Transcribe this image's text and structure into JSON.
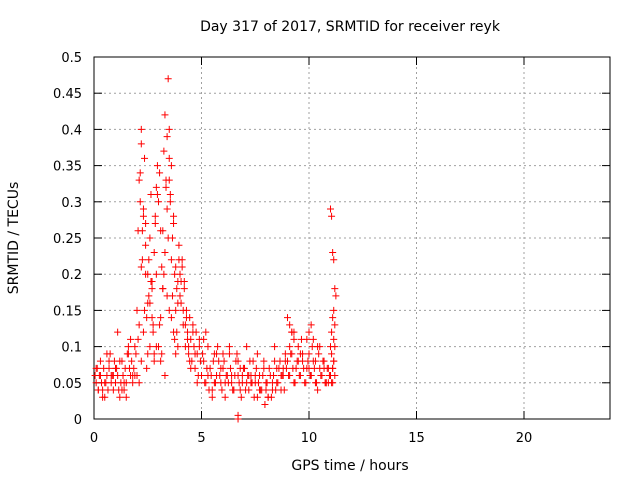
{
  "chart_data": {
    "type": "scatter",
    "title": "Day 317 of 2017, SRMTID for receiver reyk",
    "xlabel": "GPS time / hours",
    "ylabel": "SRMTID / TECUs",
    "xlim": [
      0,
      24
    ],
    "ylim": [
      0,
      0.5
    ],
    "xticks": [
      0,
      5,
      10,
      15,
      20
    ],
    "yticks": [
      0,
      0.05,
      0.1,
      0.15,
      0.2,
      0.25,
      0.3,
      0.35,
      0.4,
      0.45,
      0.5
    ],
    "grid": true,
    "marker": "plus",
    "color": "#ff0000",
    "series": [
      {
        "x": [
          0.05,
          0.1,
          0.15,
          0.2,
          0.25,
          0.3,
          0.35,
          0.4,
          0.45,
          0.5,
          0.55,
          0.6,
          0.65,
          0.7,
          0.75,
          0.8,
          0.85,
          0.9,
          0.95,
          1.0,
          1.05,
          1.1,
          1.15,
          1.2,
          1.25,
          1.3,
          1.35,
          1.4,
          1.45,
          1.5,
          1.55,
          1.6,
          1.65,
          1.7,
          1.75,
          1.8,
          1.85,
          1.9,
          1.95,
          0.1,
          0.3,
          0.5,
          0.7,
          0.9,
          1.1,
          1.3,
          1.5,
          1.7,
          1.9,
          0.2,
          0.6,
          1.0,
          1.4,
          1.8,
          0.4,
          0.8,
          1.2,
          1.6,
          2.0,
          2.05,
          2.1,
          2.15,
          2.2,
          2.25,
          2.3,
          2.35,
          2.4,
          2.45,
          2.5,
          2.55,
          2.6,
          2.65,
          2.7,
          2.75,
          2.8,
          2.85,
          2.9,
          2.95,
          2.0,
          2.1,
          2.2,
          2.3,
          2.4,
          2.5,
          2.6,
          2.7,
          2.8,
          2.9,
          2.05,
          2.15,
          2.25,
          2.35,
          2.45,
          2.55,
          2.65,
          2.75,
          2.85,
          2.95,
          2.1,
          2.2,
          2.3,
          2.5,
          2.7,
          2.9,
          2.2,
          2.4,
          2.6,
          2.8,
          3.0,
          3.05,
          3.1,
          3.15,
          3.2,
          3.25,
          3.3,
          3.35,
          3.4,
          3.45,
          3.5,
          3.55,
          3.6,
          3.65,
          3.7,
          3.75,
          3.8,
          3.85,
          3.9,
          3.95,
          3.0,
          3.1,
          3.2,
          3.3,
          3.4,
          3.5,
          3.6,
          3.7,
          3.8,
          3.9,
          3.05,
          3.15,
          3.25,
          3.35,
          3.45,
          3.55,
          3.65,
          3.75,
          3.85,
          3.95,
          3.1,
          3.3,
          3.5,
          3.7,
          3.9,
          3.2,
          3.4,
          3.6,
          3.8,
          3.5,
          4.0,
          4.05,
          4.1,
          4.15,
          4.2,
          4.25,
          4.3,
          4.35,
          4.4,
          4.45,
          4.5,
          4.55,
          4.6,
          4.65,
          4.7,
          4.75,
          4.8,
          4.85,
          4.9,
          4.95,
          4.0,
          4.1,
          4.2,
          4.3,
          4.4,
          4.5,
          4.6,
          4.7,
          4.8,
          4.9,
          4.05,
          4.15,
          4.25,
          4.35,
          4.45,
          5.0,
          5.1,
          5.2,
          5.3,
          5.4,
          5.5,
          5.6,
          5.7,
          5.8,
          5.9,
          6.0,
          6.1,
          6.2,
          6.3,
          6.4,
          6.5,
          6.6,
          6.7,
          6.8,
          6.9,
          5.05,
          5.15,
          5.25,
          5.35,
          5.45,
          5.55,
          5.65,
          5.75,
          5.85,
          5.95,
          6.05,
          6.15,
          6.25,
          6.35,
          6.45,
          6.55,
          6.65,
          6.75,
          6.85,
          6.95,
          5.1,
          5.3,
          5.5,
          5.7,
          5.9,
          6.1,
          6.3,
          6.5,
          6.7,
          6.9,
          5.2,
          5.6,
          6.0,
          6.4,
          6.8,
          6.7,
          6.7,
          7.0,
          7.1,
          7.2,
          7.3,
          7.4,
          7.5,
          7.6,
          7.7,
          7.8,
          7.9,
          8.0,
          8.1,
          8.2,
          8.3,
          8.4,
          8.5,
          8.6,
          8.7,
          8.8,
          8.9,
          7.05,
          7.15,
          7.25,
          7.35,
          7.45,
          7.55,
          7.65,
          7.75,
          7.85,
          7.95,
          8.05,
          8.15,
          8.25,
          8.35,
          8.45,
          8.55,
          8.65,
          8.75,
          8.85,
          8.95,
          7.1,
          7.3,
          7.5,
          7.7,
          7.9,
          8.1,
          8.3,
          8.5,
          8.7,
          8.9,
          7.2,
          7.6,
          8.0,
          8.4,
          8.8,
          9.0,
          9.1,
          9.2,
          9.3,
          9.4,
          9.5,
          9.6,
          9.7,
          9.8,
          9.9,
          10.0,
          10.1,
          10.2,
          10.3,
          10.4,
          10.5,
          10.6,
          10.7,
          10.8,
          10.9,
          9.05,
          9.15,
          9.25,
          9.35,
          9.45,
          9.55,
          9.65,
          9.75,
          9.85,
          9.95,
          10.05,
          10.15,
          10.25,
          10.35,
          10.45,
          10.55,
          10.65,
          10.75,
          10.85,
          10.95,
          9.1,
          9.3,
          9.5,
          9.7,
          9.9,
          10.1,
          10.3,
          10.5,
          10.7,
          10.9,
          9.2,
          9.6,
          10.0,
          10.4,
          10.8,
          9.0,
          9.1,
          9.2,
          9.3,
          10.0,
          10.1,
          10.2,
          11.0,
          11.05,
          11.1,
          11.15,
          11.2,
          11.25,
          11.0,
          11.05,
          11.1,
          11.15,
          11.2,
          11.0,
          11.05,
          11.1,
          11.15,
          11.2,
          11.05,
          11.1,
          11.15,
          11.2,
          11.1,
          11.15
        ],
        "y": [
          0.06,
          0.05,
          0.07,
          0.04,
          0.06,
          0.08,
          0.05,
          0.04,
          0.07,
          0.03,
          0.05,
          0.06,
          0.04,
          0.07,
          0.09,
          0.05,
          0.06,
          0.04,
          0.08,
          0.05,
          0.07,
          0.06,
          0.04,
          0.03,
          0.05,
          0.08,
          0.06,
          0.04,
          0.07,
          0.05,
          0.09,
          0.1,
          0.07,
          0.06,
          0.08,
          0.05,
          0.07,
          0.06,
          0.09,
          0.07,
          0.06,
          0.05,
          0.08,
          0.06,
          0.12,
          0.04,
          0.03,
          0.11,
          0.1,
          0.04,
          0.09,
          0.07,
          0.05,
          0.06,
          0.03,
          0.06,
          0.08,
          0.09,
          0.15,
          0.26,
          0.33,
          0.3,
          0.4,
          0.22,
          0.28,
          0.36,
          0.2,
          0.14,
          0.09,
          0.17,
          0.25,
          0.31,
          0.19,
          0.12,
          0.08,
          0.27,
          0.32,
          0.35,
          0.06,
          0.13,
          0.21,
          0.29,
          0.24,
          0.16,
          0.1,
          0.18,
          0.23,
          0.2,
          0.11,
          0.34,
          0.26,
          0.15,
          0.07,
          0.22,
          0.19,
          0.13,
          0.28,
          0.31,
          0.05,
          0.08,
          0.12,
          0.2,
          0.14,
          0.1,
          0.38,
          0.27,
          0.16,
          0.09,
          0.3,
          0.34,
          0.26,
          0.21,
          0.18,
          0.37,
          0.42,
          0.33,
          0.29,
          0.25,
          0.36,
          0.31,
          0.22,
          0.17,
          0.28,
          0.2,
          0.15,
          0.12,
          0.19,
          0.24,
          0.1,
          0.14,
          0.18,
          0.23,
          0.39,
          0.4,
          0.35,
          0.27,
          0.21,
          0.16,
          0.13,
          0.09,
          0.2,
          0.32,
          0.47,
          0.3,
          0.25,
          0.11,
          0.18,
          0.22,
          0.08,
          0.06,
          0.15,
          0.12,
          0.1,
          0.26,
          0.17,
          0.14,
          0.09,
          0.33,
          0.2,
          0.16,
          0.22,
          0.13,
          0.18,
          0.1,
          0.15,
          0.12,
          0.09,
          0.14,
          0.11,
          0.08,
          0.13,
          0.1,
          0.07,
          0.12,
          0.09,
          0.06,
          0.11,
          0.08,
          0.17,
          0.21,
          0.19,
          0.14,
          0.1,
          0.07,
          0.12,
          0.09,
          0.05,
          0.1,
          0.19,
          0.15,
          0.13,
          0.11,
          0.08,
          0.06,
          0.08,
          0.05,
          0.1,
          0.07,
          0.04,
          0.09,
          0.06,
          0.08,
          0.05,
          0.07,
          0.03,
          0.06,
          0.09,
          0.05,
          0.04,
          0.08,
          0.06,
          0.07,
          0.05,
          0.09,
          0.05,
          0.07,
          0.04,
          0.06,
          0.08,
          0.05,
          0.1,
          0.06,
          0.04,
          0.08,
          0.06,
          0.05,
          0.07,
          0.04,
          0.06,
          0.09,
          0.05,
          0.03,
          0.07,
          0.11,
          0.06,
          0.03,
          0.09,
          0.07,
          0.05,
          0.1,
          0.04,
          0.08,
          0.06,
          0.12,
          0.05,
          0.09,
          0.06,
          0.04,
          0.0,
          0.005,
          0.07,
          0.05,
          0.04,
          0.06,
          0.08,
          0.05,
          0.03,
          0.06,
          0.04,
          0.07,
          0.05,
          0.03,
          0.06,
          0.04,
          0.08,
          0.05,
          0.07,
          0.04,
          0.06,
          0.09,
          0.04,
          0.06,
          0.08,
          0.05,
          0.03,
          0.07,
          0.05,
          0.04,
          0.06,
          0.02,
          0.05,
          0.07,
          0.03,
          0.06,
          0.04,
          0.05,
          0.08,
          0.06,
          0.04,
          0.07,
          0.1,
          0.05,
          0.06,
          0.04,
          0.08,
          0.03,
          0.05,
          0.07,
          0.06,
          0.08,
          0.06,
          0.09,
          0.04,
          0.1,
          0.07,
          0.08,
          0.06,
          0.09,
          0.05,
          0.07,
          0.1,
          0.06,
          0.08,
          0.05,
          0.07,
          0.09,
          0.06,
          0.08,
          0.05,
          0.1,
          0.07,
          0.06,
          0.08,
          0.05,
          0.07,
          0.06,
          0.09,
          0.07,
          0.05,
          0.08,
          0.06,
          0.11,
          0.07,
          0.05,
          0.08,
          0.06,
          0.1,
          0.07,
          0.05,
          0.09,
          0.06,
          0.08,
          0.05,
          0.07,
          0.06,
          0.1,
          0.12,
          0.08,
          0.09,
          0.11,
          0.06,
          0.08,
          0.1,
          0.07,
          0.05,
          0.12,
          0.09,
          0.07,
          0.04,
          0.05,
          0.14,
          0.13,
          0.12,
          0.11,
          0.12,
          0.13,
          0.11,
          0.29,
          0.28,
          0.23,
          0.22,
          0.18,
          0.17,
          0.06,
          0.05,
          0.07,
          0.08,
          0.06,
          0.1,
          0.12,
          0.14,
          0.15,
          0.13,
          0.09,
          0.07,
          0.11,
          0.1,
          0.05,
          0.08
        ]
      }
    ]
  }
}
